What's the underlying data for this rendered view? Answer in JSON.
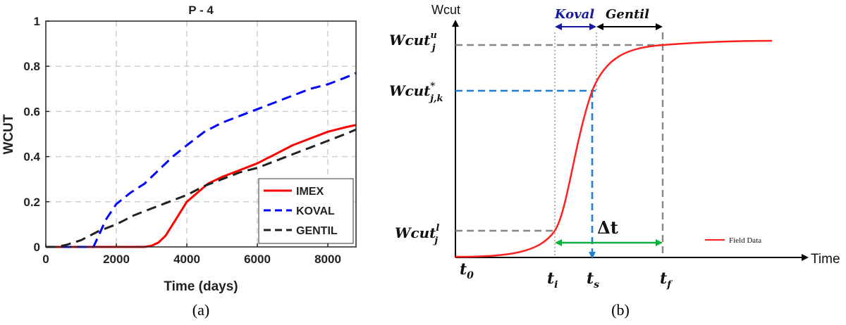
{
  "chart_data": [
    {
      "type": "line",
      "title": "P - 4",
      "xlabel": "Time (days)",
      "ylabel": "WCUT",
      "xlim": [
        0,
        8800
      ],
      "ylim": [
        0,
        1
      ],
      "x_ticks": [
        "0",
        "2000",
        "4000",
        "6000",
        "8000"
      ],
      "y_ticks": [
        "0",
        "0.2",
        "0.4",
        "0.6",
        "0.8",
        "1"
      ],
      "grid": true,
      "legend": "bottom-right",
      "caption": "(a)",
      "series": [
        {
          "name": "IMEX",
          "color": "#ff0000",
          "dash": "solid",
          "x": [
            0,
            2800,
            3000,
            3200,
            3400,
            3600,
            3800,
            4000,
            4300,
            4600,
            5000,
            5500,
            6000,
            6500,
            7000,
            7500,
            8000,
            8500,
            8800
          ],
          "y": [
            0,
            0,
            0.005,
            0.02,
            0.05,
            0.1,
            0.15,
            0.2,
            0.24,
            0.28,
            0.31,
            0.34,
            0.37,
            0.41,
            0.45,
            0.48,
            0.51,
            0.53,
            0.54
          ]
        },
        {
          "name": "KOVAL",
          "color": "#0000ff",
          "dash": "dashed",
          "x": [
            0,
            1350,
            1500,
            1700,
            2000,
            2400,
            2800,
            3200,
            3600,
            4000,
            4500,
            5000,
            5500,
            6000,
            6500,
            7000,
            7500,
            8000,
            8500,
            8800
          ],
          "y": [
            0,
            0,
            0.05,
            0.12,
            0.19,
            0.24,
            0.28,
            0.34,
            0.4,
            0.45,
            0.51,
            0.55,
            0.58,
            0.61,
            0.64,
            0.67,
            0.7,
            0.72,
            0.75,
            0.77
          ]
        },
        {
          "name": "GENTIL",
          "color": "#222222",
          "dash": "dashed",
          "x": [
            0,
            300,
            600,
            1000,
            1500,
            2000,
            2500,
            3000,
            3500,
            4000,
            4500,
            5000,
            5500,
            6000,
            6500,
            7000,
            7500,
            8000,
            8500,
            8800
          ],
          "y": [
            0,
            0,
            0.01,
            0.03,
            0.07,
            0.1,
            0.14,
            0.17,
            0.2,
            0.23,
            0.27,
            0.3,
            0.33,
            0.35,
            0.38,
            0.41,
            0.44,
            0.47,
            0.5,
            0.52
          ]
        }
      ]
    },
    {
      "type": "line",
      "title": "",
      "xlabel": "Time",
      "ylabel": "Wcut",
      "caption": "(b)",
      "legend": "bottom-right",
      "series": [
        {
          "name": "Field Data",
          "color": "#ff2020"
        }
      ],
      "time_markers": [
        {
          "label": "t",
          "sub": "0"
        },
        {
          "label": "t",
          "sub": "i"
        },
        {
          "label": "t",
          "sub": "s"
        },
        {
          "label": "t",
          "sub": "f"
        }
      ],
      "wcut_levels": [
        {
          "label": "Wcut",
          "sub": "j",
          "sup": "u"
        },
        {
          "label": "Wcut",
          "sub": "j,k",
          "sup": "*"
        },
        {
          "label": "Wcut",
          "sub": "j",
          "sup": "l"
        }
      ],
      "spans": {
        "koval": "Koval",
        "gentil": "Gentil",
        "delta": "Δt"
      }
    }
  ]
}
